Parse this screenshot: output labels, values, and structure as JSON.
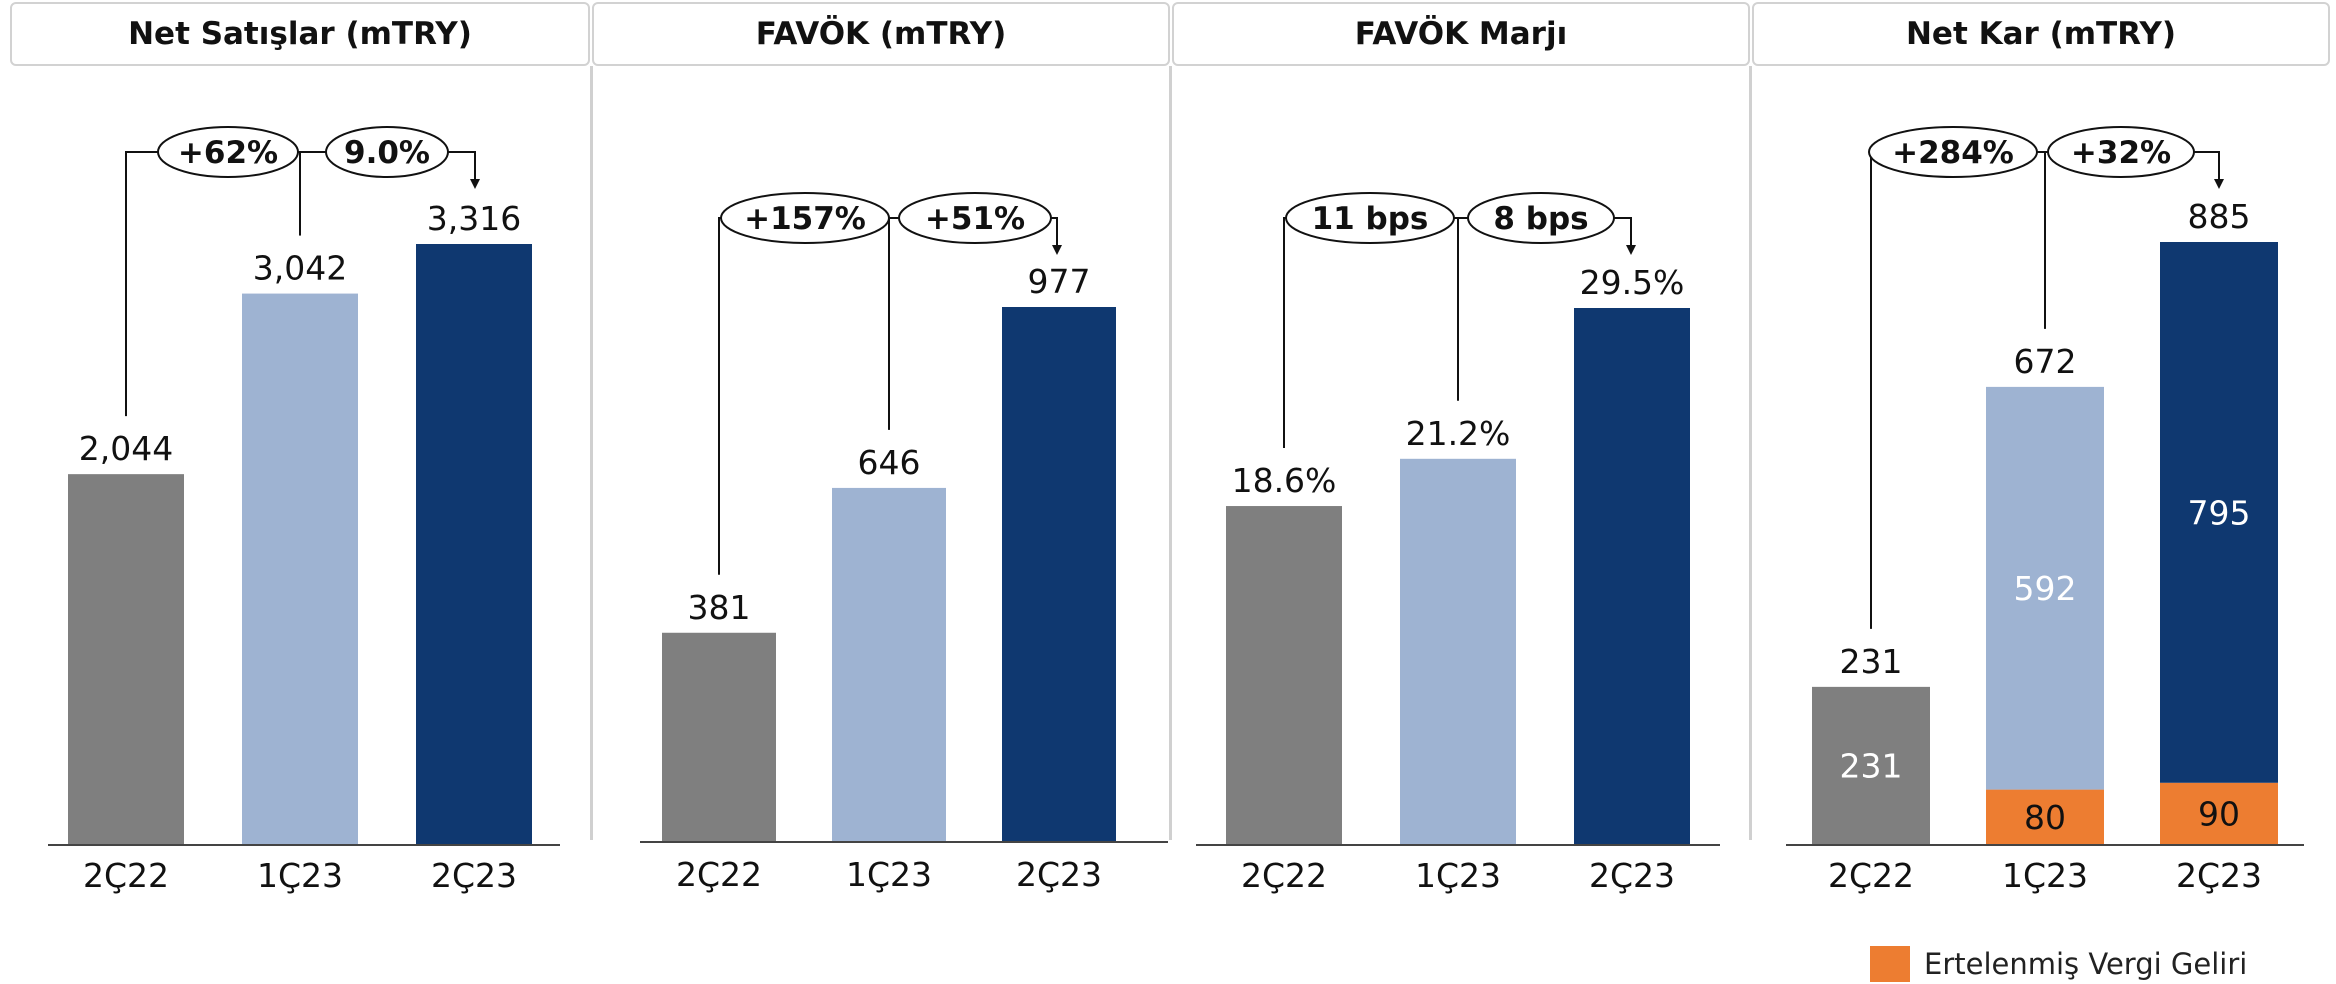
{
  "colors": {
    "gray": "#7f7f7f",
    "light_blue": "#9eb3d2",
    "dark_blue": "#0f3870",
    "orange": "#ed7d31"
  },
  "legend": {
    "label": "Ertelenmiş Vergi Geliri"
  },
  "chart_data": [
    {
      "type": "bar",
      "title": "Net Satışlar (mTRY)",
      "categories": [
        "2Ç22",
        "1Ç23",
        "2Ç23"
      ],
      "values": [
        2044,
        3042,
        3316
      ],
      "value_labels": [
        "2,044",
        "3,042",
        "3,316"
      ],
      "annotations": [
        {
          "from": "2Ç22",
          "to": "2Ç23",
          "label": "+62%"
        },
        {
          "from": "1Ç23",
          "to": "2Ç23",
          "label": "9.0%"
        }
      ]
    },
    {
      "type": "bar",
      "title": "FAVÖK (mTRY)",
      "categories": [
        "2Ç22",
        "1Ç23",
        "2Ç23"
      ],
      "values": [
        381,
        646,
        977
      ],
      "value_labels": [
        "381",
        "646",
        "977"
      ],
      "annotations": [
        {
          "from": "2Ç22",
          "to": "2Ç23",
          "label": "+157%"
        },
        {
          "from": "1Ç23",
          "to": "2Ç23",
          "label": "+51%"
        }
      ]
    },
    {
      "type": "bar",
      "title": "FAVÖK Marjı",
      "categories": [
        "2Ç22",
        "1Ç23",
        "2Ç23"
      ],
      "values": [
        18.6,
        21.2,
        29.5
      ],
      "value_labels": [
        "18.6%",
        "21.2%",
        "29.5%"
      ],
      "annotations": [
        {
          "from": "2Ç22",
          "to": "2Ç23",
          "label": "11 bps"
        },
        {
          "from": "1Ç23",
          "to": "2Ç23",
          "label": "8 bps"
        }
      ]
    },
    {
      "type": "bar",
      "stacked": true,
      "title": "Net Kar (mTRY)",
      "categories": [
        "2Ç22",
        "1Ç23",
        "2Ç23"
      ],
      "totals": [
        231,
        672,
        885
      ],
      "total_labels": [
        "231",
        "672",
        "885"
      ],
      "series": [
        {
          "name": "Ertelenmiş Vergi Geliri",
          "values": [
            0,
            80,
            90
          ],
          "labels": [
            "",
            "80",
            "90"
          ]
        },
        {
          "values": [
            231,
            592,
            795
          ],
          "labels": [
            "231",
            "592",
            "795"
          ]
        }
      ],
      "annotations": [
        {
          "from": "2Ç22",
          "to": "2Ç23",
          "label": "+284%"
        },
        {
          "from": "1Ç23",
          "to": "2Ç23",
          "label": "+32%"
        }
      ]
    }
  ]
}
